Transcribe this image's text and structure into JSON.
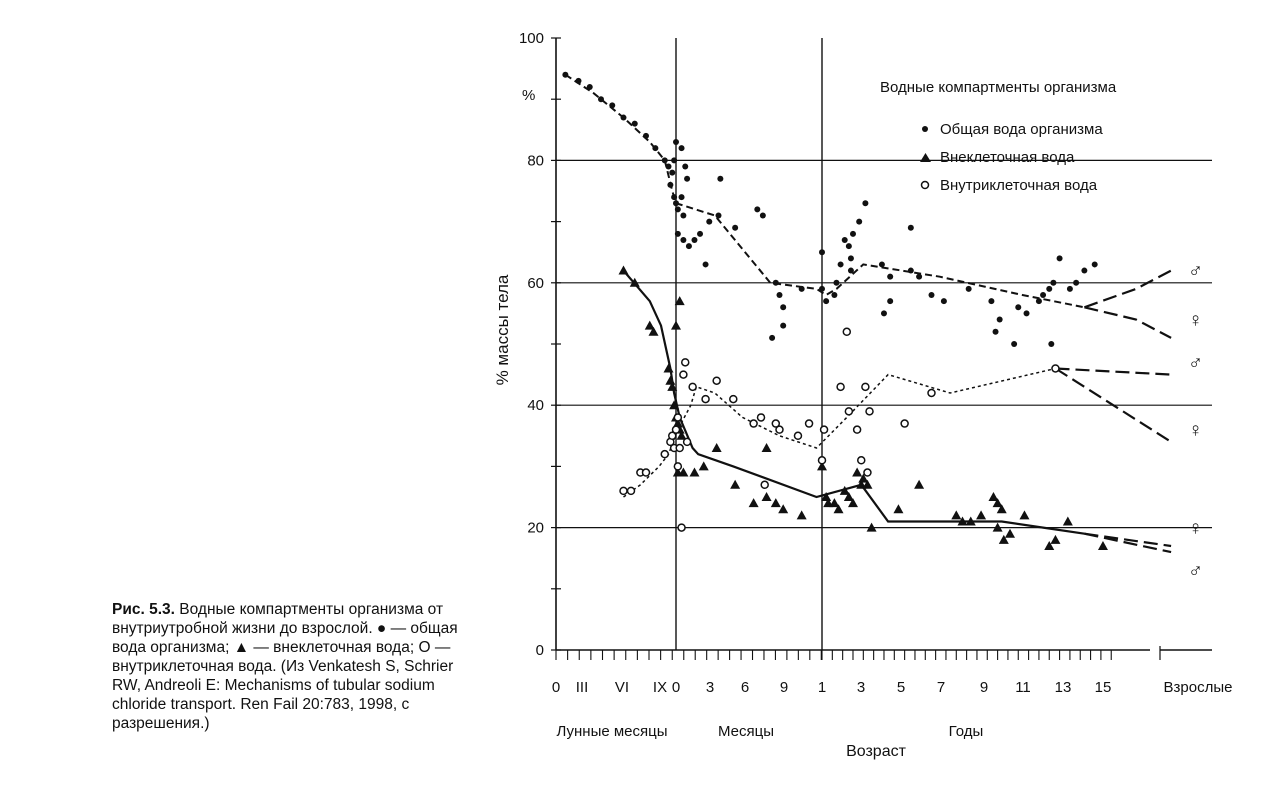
{
  "caption": {
    "label": "Рис. 5.3.",
    "text": "Водные компартменты организма от внутриутробной жизни до взрослой. ● — общая вода организма; ▲ — внеклеточная вода; О — внутриклеточная вода. (Из Venkatesh S, Schrier RW, Andreoli E: Mechanisms of tubular sodium chloride transport. Ren Fail 20:783, 1998, с разрешения.)"
  },
  "chart_data": {
    "type": "scatter",
    "title": "",
    "ylabel": "% массы тела",
    "y_unit": "%",
    "xlabel": "Возраст",
    "ylim": [
      0,
      100
    ],
    "y_ticks": [
      "0",
      "20",
      "40",
      "60",
      "80",
      "100"
    ],
    "grid_y": [
      20,
      40,
      60,
      80
    ],
    "x_axis": "categorical, segmented",
    "x_ticks": [
      "0",
      "III",
      "VI",
      "IX",
      "0",
      "3",
      "6",
      "9",
      "1",
      "3",
      "5",
      "7",
      "9",
      "11",
      "13",
      "15",
      "Взрослые"
    ],
    "x_segments": [
      "Лунные месяцы",
      "Месяцы",
      "Годы"
    ],
    "legend": {
      "title": "Водные компартменты организма",
      "position": "top-right",
      "entries": [
        "Общая вода организма",
        "Внеклеточная вода",
        "Внутриклеточная вода"
      ]
    },
    "sex_symbols": {
      "male": "♂",
      "female": "♀"
    },
    "series": [
      {
        "name": "Общая вода организма",
        "marker": "dot",
        "points": [
          [
            0.5,
            94
          ],
          [
            1.2,
            93
          ],
          [
            1.8,
            92
          ],
          [
            2.4,
            90
          ],
          [
            3.0,
            89
          ],
          [
            3.6,
            87
          ],
          [
            4.2,
            86
          ],
          [
            4.8,
            84
          ],
          [
            5.3,
            82
          ],
          [
            5.8,
            80
          ],
          [
            6.0,
            79
          ],
          [
            6.1,
            76
          ],
          [
            6.2,
            78
          ],
          [
            6.3,
            74
          ],
          [
            6.4,
            73
          ],
          [
            6.5,
            72
          ],
          [
            6.7,
            74
          ],
          [
            6.8,
            71
          ],
          [
            6.3,
            80
          ],
          [
            6.4,
            83
          ],
          [
            6.7,
            82
          ],
          [
            6.9,
            79
          ],
          [
            7.0,
            77
          ],
          [
            6.5,
            68
          ],
          [
            6.8,
            67
          ],
          [
            7.1,
            66
          ],
          [
            7.4,
            67
          ],
          [
            7.7,
            68
          ],
          [
            8.0,
            63
          ],
          [
            8.2,
            70
          ],
          [
            8.7,
            71
          ],
          [
            8.8,
            77
          ],
          [
            9.6,
            69
          ],
          [
            10.8,
            72
          ],
          [
            11.1,
            71
          ],
          [
            11.8,
            60
          ],
          [
            12.0,
            58
          ],
          [
            12.2,
            56
          ],
          [
            11.6,
            51
          ],
          [
            12.2,
            53
          ],
          [
            13.2,
            59
          ],
          [
            14.3,
            65
          ],
          [
            14.3,
            59
          ],
          [
            14.5,
            57
          ],
          [
            14.9,
            58
          ],
          [
            15.0,
            60
          ],
          [
            15.2,
            63
          ],
          [
            15.4,
            67
          ],
          [
            15.6,
            66
          ],
          [
            15.8,
            68
          ],
          [
            15.7,
            62
          ],
          [
            16.1,
            70
          ],
          [
            15.7,
            64
          ],
          [
            16.4,
            73
          ],
          [
            17.2,
            63
          ],
          [
            17.6,
            61
          ],
          [
            17.6,
            57
          ],
          [
            17.3,
            55
          ],
          [
            18.6,
            69
          ],
          [
            18.6,
            62
          ],
          [
            19.0,
            61
          ],
          [
            19.6,
            58
          ],
          [
            20.2,
            57
          ],
          [
            21.4,
            59
          ],
          [
            22.5,
            57
          ],
          [
            22.7,
            52
          ],
          [
            22.9,
            54
          ],
          [
            23.6,
            50
          ],
          [
            23.8,
            56
          ],
          [
            24.2,
            55
          ],
          [
            24.8,
            57
          ],
          [
            25.0,
            58
          ],
          [
            25.3,
            59
          ],
          [
            25.5,
            60
          ],
          [
            26.3,
            59
          ],
          [
            26.6,
            60
          ],
          [
            27.0,
            62
          ],
          [
            27.5,
            63
          ],
          [
            25.4,
            50
          ],
          [
            25.8,
            64
          ]
        ]
      },
      {
        "name": "Внеклеточная вода",
        "marker": "triangle",
        "points": [
          [
            3.6,
            62
          ],
          [
            4.2,
            60
          ],
          [
            5.0,
            53
          ],
          [
            5.2,
            52
          ],
          [
            6.0,
            46
          ],
          [
            6.1,
            44
          ],
          [
            6.2,
            43
          ],
          [
            6.3,
            40
          ],
          [
            6.4,
            38
          ],
          [
            6.5,
            37
          ],
          [
            6.6,
            36
          ],
          [
            6.4,
            53
          ],
          [
            6.6,
            57
          ],
          [
            6.7,
            35
          ],
          [
            6.5,
            29
          ],
          [
            6.8,
            29
          ],
          [
            7.4,
            29
          ],
          [
            7.9,
            30
          ],
          [
            8.6,
            33
          ],
          [
            9.6,
            27
          ],
          [
            10.6,
            24
          ],
          [
            11.3,
            25
          ],
          [
            11.8,
            24
          ],
          [
            12.2,
            23
          ],
          [
            11.3,
            33
          ],
          [
            13.2,
            22
          ],
          [
            14.3,
            30
          ],
          [
            14.5,
            25
          ],
          [
            14.6,
            24
          ],
          [
            14.9,
            24
          ],
          [
            15.1,
            23
          ],
          [
            15.4,
            26
          ],
          [
            15.6,
            25
          ],
          [
            15.8,
            24
          ],
          [
            16.2,
            27
          ],
          [
            16.0,
            29
          ],
          [
            16.3,
            28
          ],
          [
            16.5,
            27
          ],
          [
            16.7,
            20
          ],
          [
            18.0,
            23
          ],
          [
            19.0,
            27
          ],
          [
            20.8,
            22
          ],
          [
            21.1,
            21
          ],
          [
            21.5,
            21
          ],
          [
            22.0,
            22
          ],
          [
            22.6,
            25
          ],
          [
            22.8,
            24
          ],
          [
            23.0,
            23
          ],
          [
            22.8,
            20
          ],
          [
            23.1,
            18
          ],
          [
            23.4,
            19
          ],
          [
            24.1,
            22
          ],
          [
            25.3,
            17
          ],
          [
            25.6,
            18
          ],
          [
            26.2,
            21
          ],
          [
            27.9,
            17
          ]
        ]
      },
      {
        "name": "Внутриклеточная вода",
        "marker": "circle",
        "points": [
          [
            3.6,
            26
          ],
          [
            4.0,
            26
          ],
          [
            4.5,
            29
          ],
          [
            4.8,
            29
          ],
          [
            5.8,
            32
          ],
          [
            6.1,
            34
          ],
          [
            6.2,
            35
          ],
          [
            6.3,
            33
          ],
          [
            6.4,
            36
          ],
          [
            6.5,
            30
          ],
          [
            6.6,
            33
          ],
          [
            6.7,
            20
          ],
          [
            6.5,
            38
          ],
          [
            6.8,
            45
          ],
          [
            6.9,
            47
          ],
          [
            7.0,
            34
          ],
          [
            7.3,
            43
          ],
          [
            8.0,
            41
          ],
          [
            8.6,
            44
          ],
          [
            9.5,
            41
          ],
          [
            10.6,
            37
          ],
          [
            11.0,
            38
          ],
          [
            11.8,
            37
          ],
          [
            11.2,
            27
          ],
          [
            12.0,
            36
          ],
          [
            13.0,
            35
          ],
          [
            13.6,
            37
          ],
          [
            14.3,
            31
          ],
          [
            14.4,
            36
          ],
          [
            15.2,
            43
          ],
          [
            15.5,
            52
          ],
          [
            15.6,
            39
          ],
          [
            16.0,
            36
          ],
          [
            16.2,
            31
          ],
          [
            16.4,
            43
          ],
          [
            16.5,
            29
          ],
          [
            16.6,
            39
          ],
          [
            18.3,
            37
          ],
          [
            19.6,
            42
          ],
          [
            25.6,
            46
          ]
        ]
      }
    ],
    "trend_lines": [
      {
        "series": "Общая вода организма",
        "style": "dashed",
        "points": [
          [
            0.5,
            94
          ],
          [
            2.0,
            91
          ],
          [
            3.6,
            87
          ],
          [
            5.0,
            83
          ],
          [
            5.8,
            80
          ],
          [
            6.2,
            75
          ],
          [
            6.4,
            73
          ],
          [
            8.5,
            71
          ],
          [
            11.5,
            60
          ],
          [
            14.0,
            59
          ],
          [
            14.5,
            58
          ],
          [
            15.0,
            59
          ],
          [
            16.3,
            63
          ],
          [
            20.0,
            61
          ],
          [
            24.0,
            58
          ],
          [
            27.0,
            56
          ]
        ]
      },
      {
        "series": "Общая вода организма",
        "label": "♂",
        "style": "long-dash",
        "points": [
          [
            27.0,
            56
          ],
          [
            29.5,
            59
          ],
          [
            31.2,
            62
          ]
        ]
      },
      {
        "series": "Общая вода организма",
        "label": "♀",
        "style": "long-dash",
        "points": [
          [
            27.0,
            56
          ],
          [
            29.5,
            54
          ],
          [
            31.2,
            51
          ]
        ]
      },
      {
        "series": "Внеклеточная вода",
        "style": "solid",
        "points": [
          [
            3.6,
            62
          ],
          [
            5.0,
            57
          ],
          [
            5.6,
            53
          ],
          [
            6.1,
            46
          ],
          [
            6.3,
            42
          ],
          [
            6.6,
            38
          ],
          [
            7.3,
            33
          ],
          [
            7.6,
            32
          ],
          [
            9.5,
            30
          ],
          [
            14.0,
            25
          ],
          [
            16.2,
            27
          ],
          [
            17.5,
            21
          ],
          [
            20.0,
            21
          ],
          [
            23.0,
            21
          ],
          [
            25.0,
            20
          ],
          [
            27.0,
            19
          ]
        ]
      },
      {
        "series": "Внеклеточная вода",
        "label": "♂",
        "style": "long-dash",
        "points": [
          [
            27.0,
            19
          ],
          [
            31.2,
            17
          ]
        ]
      },
      {
        "series": "Внеклеточная вода",
        "label": "♀",
        "style": "long-dash",
        "points": [
          [
            27.0,
            19
          ],
          [
            31.2,
            16
          ]
        ]
      },
      {
        "series": "Внутриклеточная вода",
        "style": "dotted",
        "points": [
          [
            3.6,
            25
          ],
          [
            4.5,
            27
          ],
          [
            5.5,
            30
          ],
          [
            6.0,
            32
          ],
          [
            6.5,
            36
          ],
          [
            7.2,
            40
          ],
          [
            7.5,
            43
          ],
          [
            8.5,
            42
          ],
          [
            10.0,
            38
          ],
          [
            12.0,
            35
          ],
          [
            14.0,
            33
          ],
          [
            15.5,
            38
          ],
          [
            17.5,
            45
          ],
          [
            20.5,
            42
          ],
          [
            25.6,
            46
          ]
        ]
      },
      {
        "series": "Внутриклеточная вода",
        "label": "♂",
        "style": "long-dash",
        "points": [
          [
            25.6,
            46
          ],
          [
            31.2,
            45
          ]
        ]
      },
      {
        "series": "Внутриклеточная вода",
        "label": "♀",
        "style": "long-dash",
        "points": [
          [
            25.6,
            46
          ],
          [
            31.2,
            34
          ]
        ]
      }
    ],
    "end_symbols": [
      {
        "series": "Общая вода организма",
        "sex": "male",
        "y": 62
      },
      {
        "series": "Общая вода организма",
        "sex": "female",
        "y": 54
      },
      {
        "series": "Внутриклеточная вода",
        "sex": "male",
        "y": 47
      },
      {
        "series": "Внутриклеточная вода",
        "sex": "female",
        "y": 36
      },
      {
        "series": "Внеклеточная вода",
        "sex": "female",
        "y": 20
      },
      {
        "series": "Внеклеточная вода",
        "sex": "male",
        "y": 13
      }
    ]
  }
}
